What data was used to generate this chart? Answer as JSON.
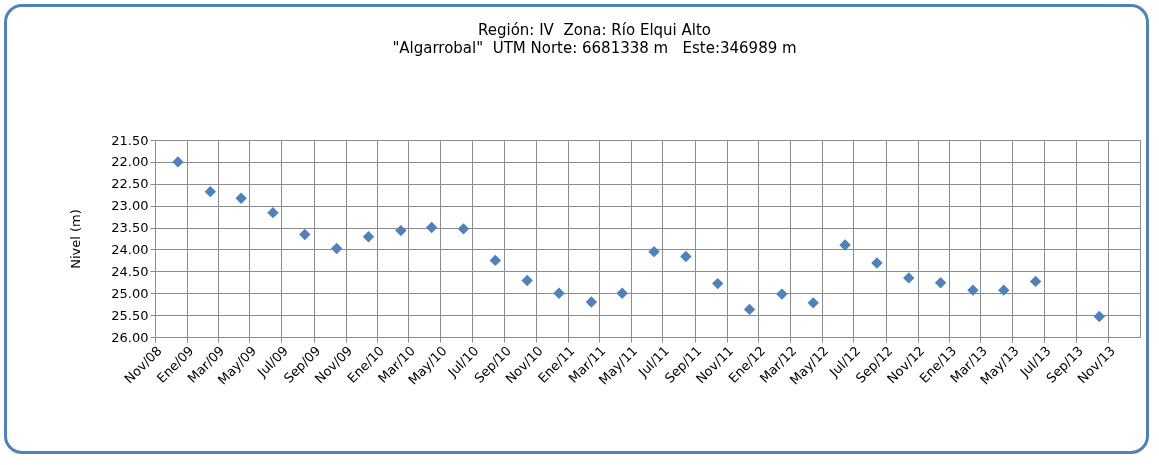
{
  "chart_data": {
    "type": "scatter",
    "title": "Región: IV  Zona: Río Elqui Alto",
    "subtitle": "\"Algarrobal\"  UTM Norte: 6681338 m   Este:346989 m",
    "ylabel": "Nivel (m)",
    "x": [
      "2008-12-15",
      "2009-02-15",
      "2009-04-15",
      "2009-06-15",
      "2009-08-15",
      "2009-10-15",
      "2009-12-15",
      "2010-02-15",
      "2010-04-15",
      "2010-06-15",
      "2010-08-15",
      "2010-10-15",
      "2010-12-15",
      "2011-02-15",
      "2011-04-15",
      "2011-06-15",
      "2011-08-15",
      "2011-10-15",
      "2011-12-15",
      "2012-02-15",
      "2012-04-15",
      "2012-06-15",
      "2012-08-15",
      "2012-10-15",
      "2012-12-15",
      "2013-02-15",
      "2013-04-15",
      "2013-06-15",
      "2013-10-15"
    ],
    "series": [
      {
        "color": "#4f81bd",
        "values": [
          22.0,
          22.68,
          22.83,
          23.16,
          23.66,
          23.98,
          23.71,
          23.57,
          23.5,
          23.53,
          24.25,
          24.71,
          25.0,
          25.2,
          25.0,
          24.05,
          24.16,
          24.78,
          25.37,
          25.02,
          25.22,
          23.9,
          24.31,
          24.65,
          24.76,
          24.93,
          24.93,
          24.73,
          25.53
        ]
      }
    ],
    "xlim": [
      "2008-11-01",
      "2014-01-01"
    ],
    "xticks": [
      {
        "value": "2008-11-01",
        "label": "Nov/08"
      },
      {
        "value": "2009-01-01",
        "label": "Ene/09"
      },
      {
        "value": "2009-03-01",
        "label": "Mar/09"
      },
      {
        "value": "2009-05-01",
        "label": "May/09"
      },
      {
        "value": "2009-07-01",
        "label": "Jul/09"
      },
      {
        "value": "2009-09-01",
        "label": "Sep/09"
      },
      {
        "value": "2009-11-01",
        "label": "Nov/09"
      },
      {
        "value": "2010-01-01",
        "label": "Ene/10"
      },
      {
        "value": "2010-03-01",
        "label": "Mar/10"
      },
      {
        "value": "2010-05-01",
        "label": "May/10"
      },
      {
        "value": "2010-07-01",
        "label": "Jul/10"
      },
      {
        "value": "2010-09-01",
        "label": "Sep/10"
      },
      {
        "value": "2010-11-01",
        "label": "Nov/10"
      },
      {
        "value": "2011-01-01",
        "label": "Ene/11"
      },
      {
        "value": "2011-03-01",
        "label": "Mar/11"
      },
      {
        "value": "2011-05-01",
        "label": "May/11"
      },
      {
        "value": "2011-07-01",
        "label": "Jul/11"
      },
      {
        "value": "2011-09-01",
        "label": "Sep/11"
      },
      {
        "value": "2011-11-01",
        "label": "Nov/11"
      },
      {
        "value": "2012-01-01",
        "label": "Ene/12"
      },
      {
        "value": "2012-03-01",
        "label": "Mar/12"
      },
      {
        "value": "2012-05-01",
        "label": "May/12"
      },
      {
        "value": "2012-07-01",
        "label": "Jul/12"
      },
      {
        "value": "2012-09-01",
        "label": "Sep/12"
      },
      {
        "value": "2012-11-01",
        "label": "Nov/12"
      },
      {
        "value": "2013-01-01",
        "label": "Ene/13"
      },
      {
        "value": "2013-03-01",
        "label": "Mar/13"
      },
      {
        "value": "2013-05-01",
        "label": "May/13"
      },
      {
        "value": "2013-07-01",
        "label": "Jul/13"
      },
      {
        "value": "2013-09-01",
        "label": "Sep/13"
      },
      {
        "value": "2013-11-01",
        "label": "Nov/13"
      }
    ],
    "ylim": [
      26.0,
      21.5
    ],
    "yticks": [
      {
        "value": 21.5,
        "label": "21.50"
      },
      {
        "value": 22.0,
        "label": "22.00"
      },
      {
        "value": 22.5,
        "label": "22.50"
      },
      {
        "value": 23.0,
        "label": "23.00"
      },
      {
        "value": 23.5,
        "label": "23.50"
      },
      {
        "value": 24.0,
        "label": "24.00"
      },
      {
        "value": 24.5,
        "label": "24.50"
      },
      {
        "value": 25.0,
        "label": "25.00"
      },
      {
        "value": 25.5,
        "label": "25.50"
      },
      {
        "value": 26.0,
        "label": "26.00"
      }
    ],
    "grid": true,
    "marker": "diamond"
  }
}
